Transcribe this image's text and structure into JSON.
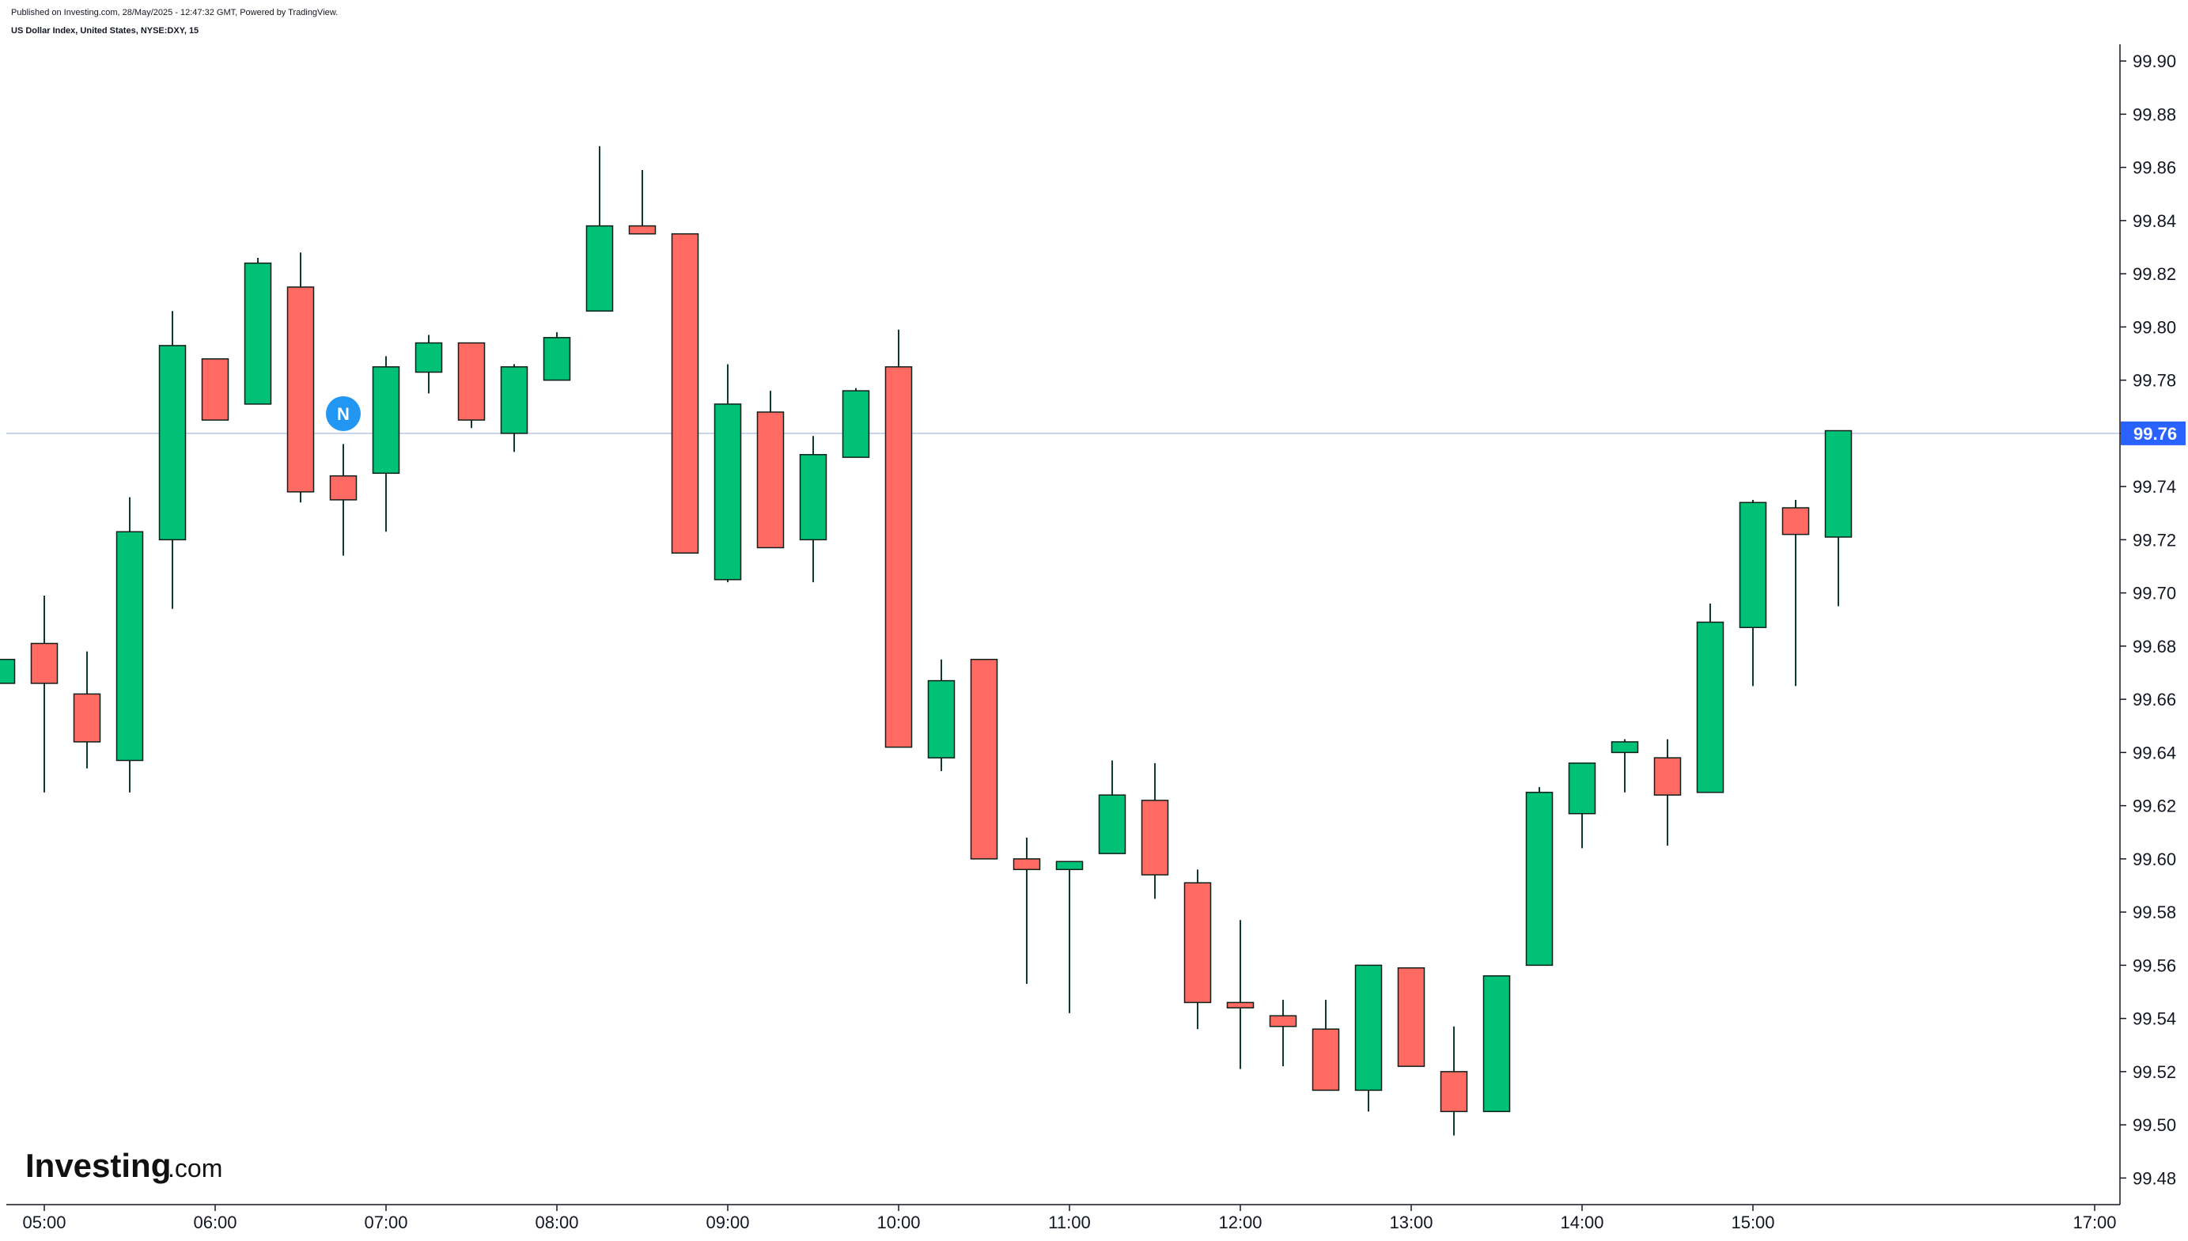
{
  "header": {
    "published": "Published on Investing.com, 28/May/2025 - 12:47:32 GMT, Powered by TradingView.",
    "symbol": "US Dollar Index, United States, NYSE:DXY, 15"
  },
  "logo": {
    "main": "Investing",
    "suffix": ".com"
  },
  "colors": {
    "up": "#00C176",
    "down": "#FF6B63",
    "wick": "#0F3A2E",
    "price_line": "#B8C7E3",
    "price_badge": "#2962FF",
    "marker": "#2196F3",
    "axis_text": "#131722",
    "axis_line": "#131722"
  },
  "marker": {
    "label": "N"
  },
  "chart_data": {
    "type": "candlestick",
    "title": "US Dollar Index, United States, NYSE:DXY, 15",
    "interval": "15",
    "x_ticks": [
      "05:00",
      "06:00",
      "07:00",
      "08:00",
      "09:00",
      "10:00",
      "11:00",
      "12:00",
      "13:00",
      "14:00",
      "15:00",
      "17:00"
    ],
    "y_ticks": [
      "99.90",
      "99.88",
      "99.86",
      "99.84",
      "99.82",
      "99.80",
      "99.78",
      "99.76",
      "99.74",
      "99.72",
      "99.70",
      "99.68",
      "99.66",
      "99.64",
      "99.62",
      "99.60",
      "99.58",
      "99.56",
      "99.54",
      "99.52",
      "99.50",
      "99.48"
    ],
    "ylim": [
      99.47,
      99.91
    ],
    "last_price": "99.76",
    "marker_time": "06:45",
    "candles": [
      {
        "time": "04:45",
        "open": 99.666,
        "high": 99.675,
        "low": 99.666,
        "close": 99.675
      },
      {
        "time": "05:00",
        "open": 99.681,
        "high": 99.699,
        "low": 99.625,
        "close": 99.666
      },
      {
        "time": "05:15",
        "open": 99.662,
        "high": 99.678,
        "low": 99.634,
        "close": 99.644
      },
      {
        "time": "05:30",
        "open": 99.637,
        "high": 99.736,
        "low": 99.625,
        "close": 99.723
      },
      {
        "time": "05:45",
        "open": 99.72,
        "high": 99.806,
        "low": 99.694,
        "close": 99.793
      },
      {
        "time": "06:00",
        "open": 99.788,
        "high": 99.788,
        "low": 99.765,
        "close": 99.765
      },
      {
        "time": "06:15",
        "open": 99.771,
        "high": 99.826,
        "low": 99.771,
        "close": 99.824
      },
      {
        "time": "06:30",
        "open": 99.815,
        "high": 99.828,
        "low": 99.734,
        "close": 99.738
      },
      {
        "time": "06:45",
        "open": 99.744,
        "high": 99.756,
        "low": 99.714,
        "close": 99.735
      },
      {
        "time": "07:00",
        "open": 99.745,
        "high": 99.789,
        "low": 99.723,
        "close": 99.785
      },
      {
        "time": "07:15",
        "open": 99.783,
        "high": 99.797,
        "low": 99.775,
        "close": 99.794
      },
      {
        "time": "07:30",
        "open": 99.794,
        "high": 99.794,
        "low": 99.762,
        "close": 99.765
      },
      {
        "time": "07:45",
        "open": 99.76,
        "high": 99.786,
        "low": 99.753,
        "close": 99.785
      },
      {
        "time": "08:00",
        "open": 99.78,
        "high": 99.798,
        "low": 99.78,
        "close": 99.796
      },
      {
        "time": "08:15",
        "open": 99.806,
        "high": 99.868,
        "low": 99.806,
        "close": 99.838
      },
      {
        "time": "08:30",
        "open": 99.838,
        "high": 99.859,
        "low": 99.835,
        "close": 99.835
      },
      {
        "time": "08:45",
        "open": 99.835,
        "high": 99.835,
        "low": 99.715,
        "close": 99.715
      },
      {
        "time": "09:00",
        "open": 99.705,
        "high": 99.786,
        "low": 99.704,
        "close": 99.771
      },
      {
        "time": "09:15",
        "open": 99.768,
        "high": 99.776,
        "low": 99.717,
        "close": 99.717
      },
      {
        "time": "09:30",
        "open": 99.72,
        "high": 99.759,
        "low": 99.704,
        "close": 99.752
      },
      {
        "time": "09:45",
        "open": 99.751,
        "high": 99.777,
        "low": 99.751,
        "close": 99.776
      },
      {
        "time": "10:00",
        "open": 99.785,
        "high": 99.799,
        "low": 99.642,
        "close": 99.642
      },
      {
        "time": "10:15",
        "open": 99.638,
        "high": 99.675,
        "low": 99.633,
        "close": 99.667
      },
      {
        "time": "10:30",
        "open": 99.675,
        "high": 99.675,
        "low": 99.6,
        "close": 99.6
      },
      {
        "time": "10:45",
        "open": 99.6,
        "high": 99.608,
        "low": 99.553,
        "close": 99.596
      },
      {
        "time": "11:00",
        "open": 99.596,
        "high": 99.599,
        "low": 99.542,
        "close": 99.599
      },
      {
        "time": "11:15",
        "open": 99.602,
        "high": 99.637,
        "low": 99.602,
        "close": 99.624
      },
      {
        "time": "11:30",
        "open": 99.622,
        "high": 99.636,
        "low": 99.585,
        "close": 99.594
      },
      {
        "time": "11:45",
        "open": 99.591,
        "high": 99.596,
        "low": 99.536,
        "close": 99.546
      },
      {
        "time": "12:00",
        "open": 99.546,
        "high": 99.577,
        "low": 99.521,
        "close": 99.544
      },
      {
        "time": "12:15",
        "open": 99.541,
        "high": 99.547,
        "low": 99.522,
        "close": 99.537
      },
      {
        "time": "12:30",
        "open": 99.536,
        "high": 99.547,
        "low": 99.513,
        "close": 99.513
      },
      {
        "time": "12:45",
        "open": 99.513,
        "high": 99.56,
        "low": 99.505,
        "close": 99.56
      },
      {
        "time": "13:00",
        "open": 99.559,
        "high": 99.559,
        "low": 99.522,
        "close": 99.522
      },
      {
        "time": "13:15",
        "open": 99.52,
        "high": 99.537,
        "low": 99.496,
        "close": 99.505
      },
      {
        "time": "13:30",
        "open": 99.505,
        "high": 99.556,
        "low": 99.505,
        "close": 99.556
      },
      {
        "time": "13:45",
        "open": 99.56,
        "high": 99.627,
        "low": 99.56,
        "close": 99.625
      },
      {
        "time": "14:00",
        "open": 99.617,
        "high": 99.636,
        "low": 99.604,
        "close": 99.636
      },
      {
        "time": "14:15",
        "open": 99.64,
        "high": 99.645,
        "low": 99.625,
        "close": 99.644
      },
      {
        "time": "14:30",
        "open": 99.638,
        "high": 99.645,
        "low": 99.605,
        "close": 99.624
      },
      {
        "time": "14:45",
        "open": 99.625,
        "high": 99.696,
        "low": 99.625,
        "close": 99.689
      },
      {
        "time": "15:00",
        "open": 99.687,
        "high": 99.735,
        "low": 99.665,
        "close": 99.734
      },
      {
        "time": "15:15",
        "open": 99.732,
        "high": 99.735,
        "low": 99.665,
        "close": 99.722
      },
      {
        "time": "15:30",
        "open": 99.721,
        "high": 99.761,
        "low": 99.695,
        "close": 99.761
      }
    ]
  }
}
